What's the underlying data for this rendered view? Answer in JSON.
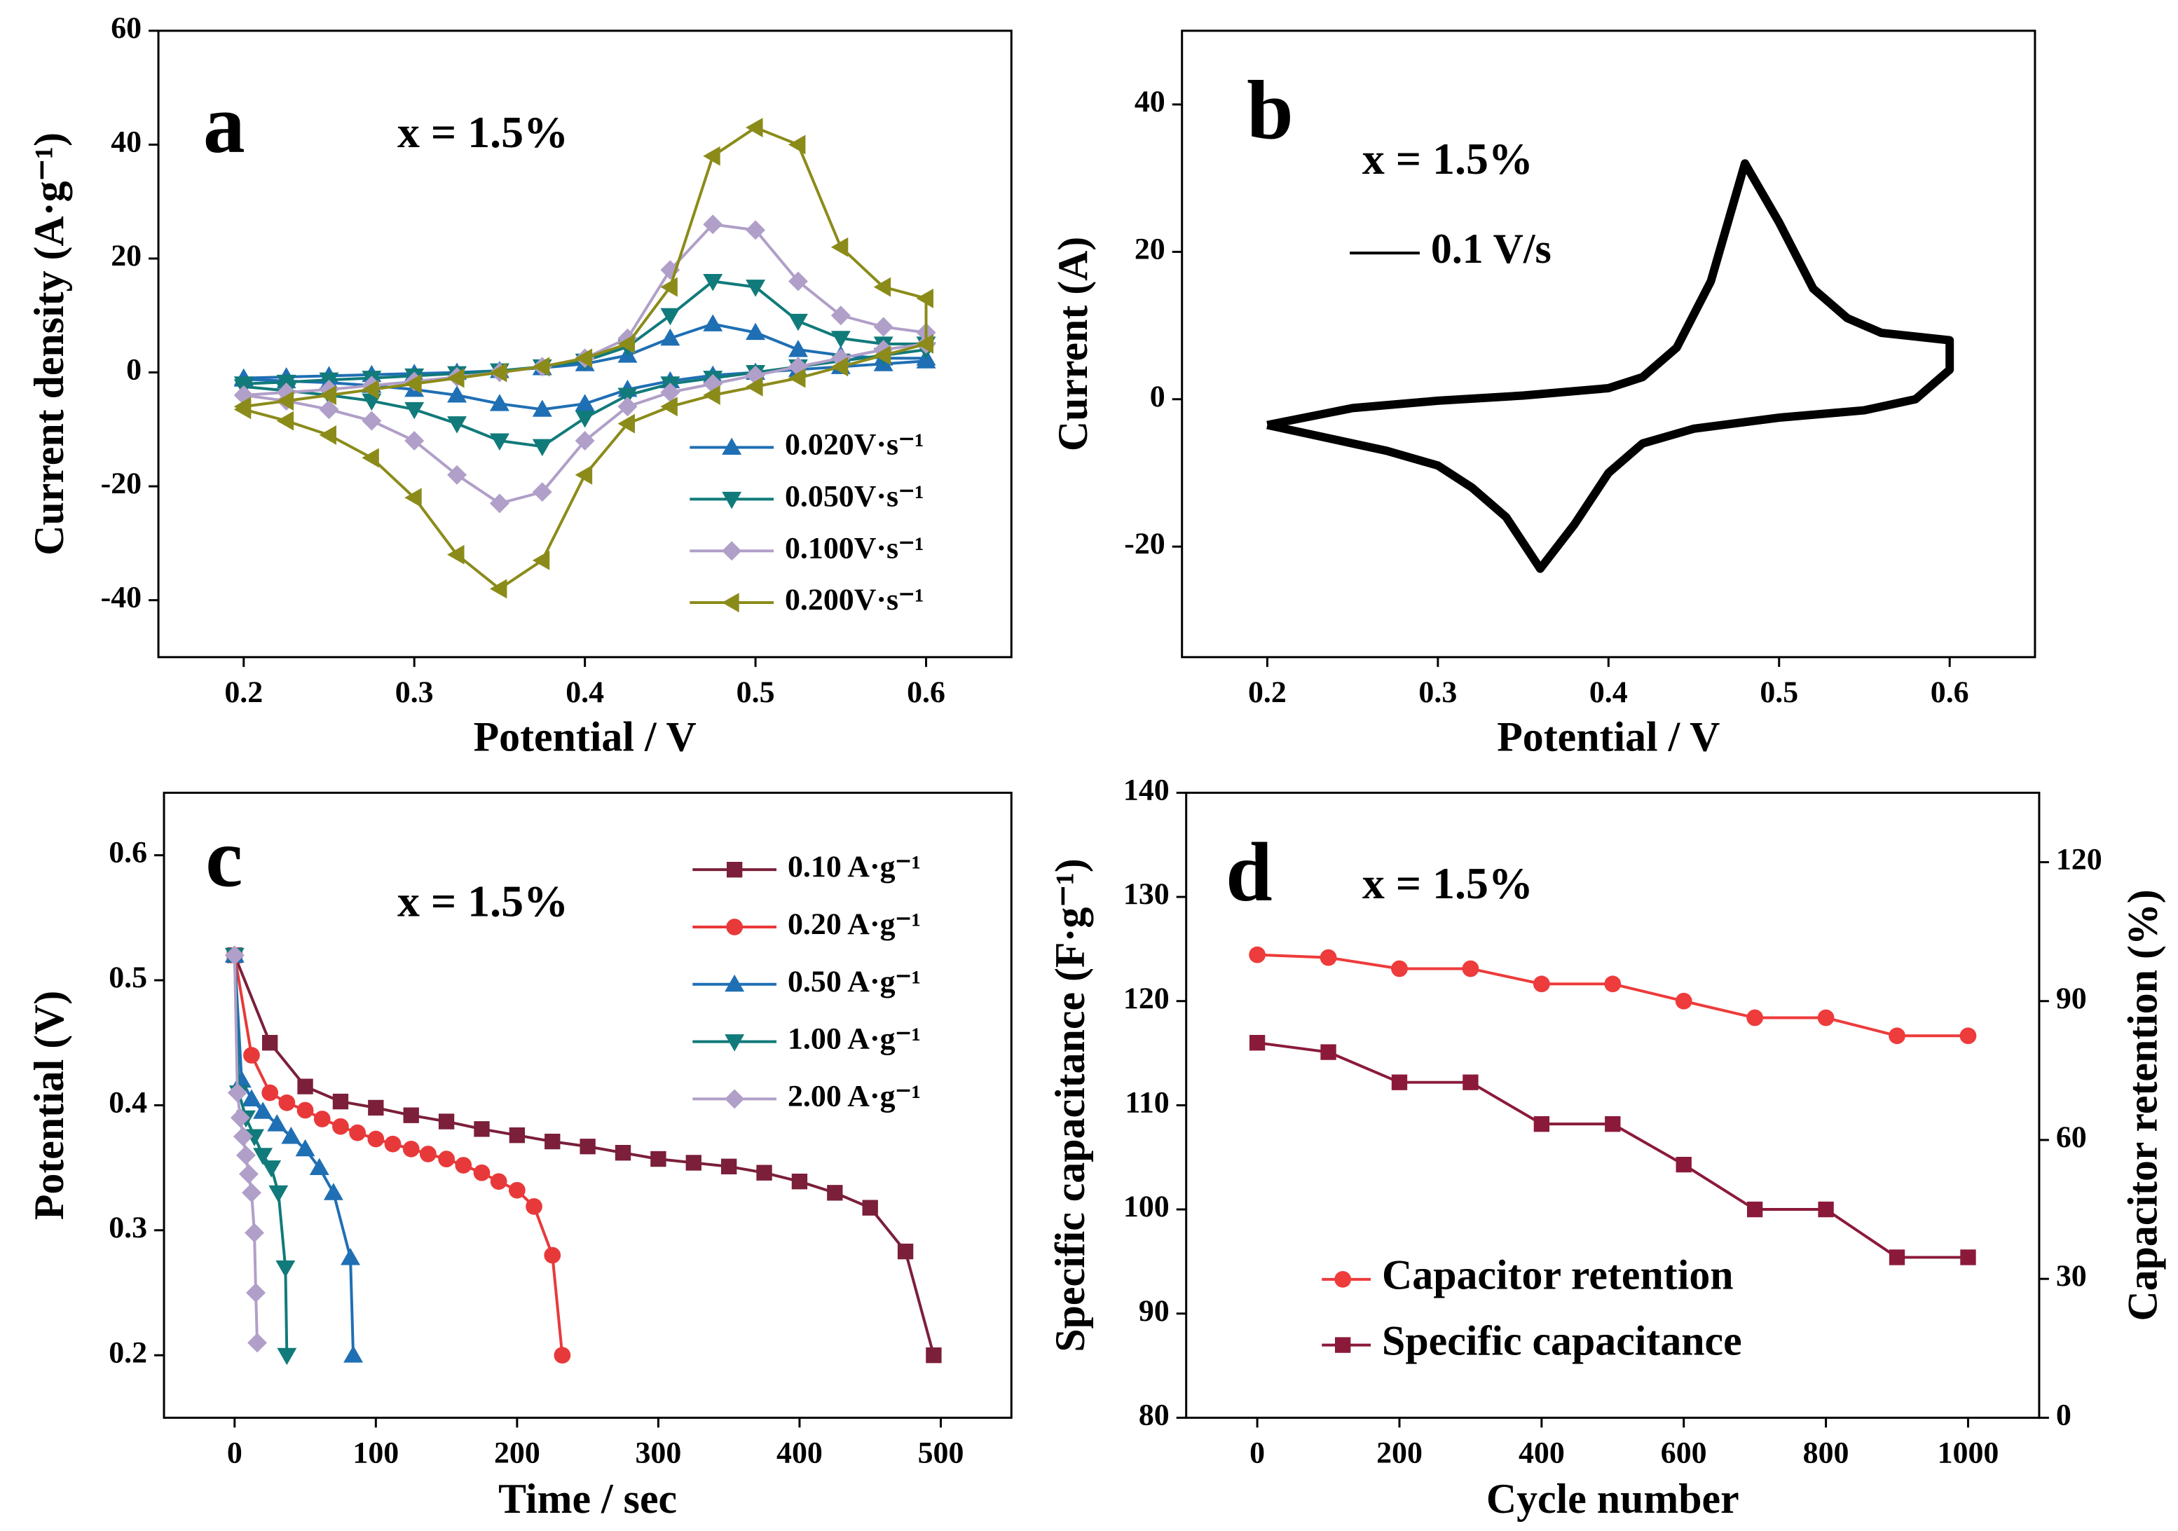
{
  "chart_data": [
    {
      "type": "line",
      "label": "a",
      "annotation": "x = 1.5%",
      "xlabel": "Potential / V",
      "ylabel": "Current density (A·g⁻¹)",
      "xlim": [
        0.15,
        0.65
      ],
      "xticks": [
        0.2,
        0.3,
        0.4,
        0.5,
        0.6
      ],
      "ylim": [
        -50,
        60
      ],
      "yticks": [
        -40,
        -20,
        0,
        20,
        40,
        60
      ],
      "legend": "lower right",
      "x": [
        0.2,
        0.225,
        0.25,
        0.275,
        0.3,
        0.325,
        0.35,
        0.375,
        0.4,
        0.425,
        0.45,
        0.475,
        0.5,
        0.525,
        0.55,
        0.575,
        0.6,
        0.6,
        0.575,
        0.55,
        0.525,
        0.5,
        0.475,
        0.45,
        0.425,
        0.4,
        0.375,
        0.35,
        0.325,
        0.3,
        0.275,
        0.25,
        0.225,
        0.2
      ],
      "series": [
        {
          "name": "0.020V·s⁻¹",
          "color": "#1f6fb4",
          "marker": "triangle-up",
          "values": [
            -1,
            -0.8,
            -0.6,
            -0.4,
            -0.2,
            0,
            0.3,
            0.8,
            1.5,
            3,
            6,
            8.5,
            7,
            4,
            3,
            2.5,
            2.5,
            2,
            1.5,
            1,
            0.5,
            0,
            -0.5,
            -1.5,
            -3,
            -5.5,
            -6.5,
            -5.5,
            -4,
            -3,
            -2.3,
            -1.8,
            -1.5,
            -1.2
          ]
        },
        {
          "name": "0.050V·s⁻¹",
          "color": "#117a7a",
          "marker": "triangle-down",
          "values": [
            -2,
            -1.7,
            -1.3,
            -1,
            -0.6,
            -0.2,
            0.3,
            1,
            2,
            4.5,
            10,
            16,
            15,
            9,
            6,
            5,
            5,
            4,
            3,
            2,
            1,
            0,
            -1,
            -2,
            -4,
            -8,
            -13,
            -12,
            -9,
            -6.5,
            -5,
            -4,
            -3.2,
            -2.5
          ]
        },
        {
          "name": "0.100V·s⁻¹",
          "color": "#b09fc8",
          "marker": "diamond",
          "values": [
            -4,
            -3.5,
            -3,
            -2.3,
            -1.6,
            -0.8,
            0,
            1,
            2.5,
            6,
            18,
            26,
            25,
            16,
            10,
            8,
            7,
            5,
            4,
            2.5,
            1,
            -0.5,
            -2,
            -3.5,
            -6,
            -12,
            -21,
            -23,
            -18,
            -12,
            -8.5,
            -6.5,
            -5,
            -4
          ]
        },
        {
          "name": "0.200V·s⁻¹",
          "color": "#8b8b1a",
          "marker": "triangle-left",
          "values": [
            -6,
            -5,
            -4,
            -3,
            -2,
            -1,
            0,
            1,
            2.5,
            5,
            15,
            38,
            43,
            40,
            22,
            15,
            13,
            5,
            3,
            1,
            -1,
            -2.5,
            -4,
            -6,
            -9,
            -18,
            -33,
            -38,
            -32,
            -22,
            -15,
            -11,
            -8.5,
            -6.5
          ]
        }
      ]
    },
    {
      "type": "line",
      "label": "b",
      "annotation": "x = 1.5%",
      "xlabel": "Potential / V",
      "ylabel": "Current (A)",
      "xlim": [
        0.15,
        0.65
      ],
      "xticks": [
        0.2,
        0.3,
        0.4,
        0.5,
        0.6
      ],
      "ylim": [
        -35,
        50
      ],
      "yticks": [
        -20,
        0,
        20,
        40
      ],
      "legend": "upper left",
      "series": [
        {
          "name": "0.1 V/s",
          "color": "#000000",
          "x": [
            0.2,
            0.25,
            0.3,
            0.35,
            0.4,
            0.42,
            0.44,
            0.46,
            0.48,
            0.5,
            0.52,
            0.54,
            0.56,
            0.58,
            0.6,
            0.6,
            0.58,
            0.55,
            0.5,
            0.45,
            0.42,
            0.4,
            0.38,
            0.36,
            0.34,
            0.32,
            0.3,
            0.27,
            0.25,
            0.22,
            0.2
          ],
          "values": [
            -3.5,
            -1.2,
            -0.2,
            0.5,
            1.5,
            3,
            7,
            16,
            32,
            24,
            15,
            11,
            9,
            8.5,
            8,
            4,
            0,
            -1.5,
            -2.5,
            -4,
            -6,
            -10,
            -17,
            -23,
            -16,
            -12,
            -9,
            -7,
            -6,
            -4.5,
            -3.5
          ]
        }
      ]
    },
    {
      "type": "line",
      "label": "c",
      "annotation": "x = 1.5%",
      "xlabel": "Time / sec",
      "ylabel": "Potential (V)",
      "xlim": [
        -50,
        550
      ],
      "xticks": [
        0,
        100,
        200,
        300,
        400,
        500
      ],
      "ylim": [
        0.15,
        0.65
      ],
      "yticks": [
        0.2,
        0.3,
        0.4,
        0.5,
        0.6
      ],
      "legend": "upper right",
      "series": [
        {
          "name": "0.10 A·g⁻¹",
          "color": "#7b1f3a",
          "marker": "square",
          "x": [
            0,
            25,
            50,
            75,
            100,
            125,
            150,
            175,
            200,
            225,
            250,
            275,
            300,
            325,
            350,
            375,
            400,
            425,
            450,
            475,
            495
          ],
          "values": [
            0.52,
            0.45,
            0.415,
            0.403,
            0.398,
            0.392,
            0.387,
            0.381,
            0.376,
            0.371,
            0.367,
            0.362,
            0.357,
            0.354,
            0.351,
            0.346,
            0.339,
            0.33,
            0.318,
            0.283,
            0.2
          ]
        },
        {
          "name": "0.20 A·g⁻¹",
          "color": "#e8393a",
          "marker": "circle",
          "x": [
            0,
            12,
            25,
            37,
            50,
            62,
            75,
            87,
            100,
            112,
            125,
            137,
            150,
            162,
            175,
            187,
            200,
            212,
            225,
            232
          ],
          "values": [
            0.52,
            0.44,
            0.41,
            0.402,
            0.396,
            0.389,
            0.383,
            0.378,
            0.373,
            0.369,
            0.365,
            0.361,
            0.357,
            0.352,
            0.346,
            0.339,
            0.332,
            0.319,
            0.28,
            0.2
          ]
        },
        {
          "name": "0.50 A·g⁻¹",
          "color": "#1f6fb4",
          "marker": "triangle-up",
          "x": [
            0,
            5,
            12,
            20,
            30,
            40,
            50,
            60,
            70,
            82,
            84
          ],
          "values": [
            0.52,
            0.42,
            0.405,
            0.395,
            0.385,
            0.375,
            0.365,
            0.35,
            0.33,
            0.278,
            0.2
          ]
        },
        {
          "name": "1.00 A·g⁻¹",
          "color": "#117a7a",
          "marker": "triangle-down",
          "x": [
            0,
            3,
            8,
            14,
            20,
            26,
            31,
            36,
            37
          ],
          "values": [
            0.52,
            0.41,
            0.39,
            0.375,
            0.36,
            0.35,
            0.33,
            0.27,
            0.2
          ]
        },
        {
          "name": "2.00 A·g⁻¹",
          "color": "#b09fc8",
          "marker": "diamond",
          "x": [
            0,
            2,
            4,
            6,
            8,
            10,
            12,
            14,
            15,
            16
          ],
          "values": [
            0.52,
            0.41,
            0.39,
            0.375,
            0.36,
            0.345,
            0.33,
            0.298,
            0.25,
            0.21
          ]
        }
      ]
    },
    {
      "type": "line",
      "label": "d",
      "annotation": "x = 1.5%",
      "xlabel": "Cycle number",
      "ylabel": "Specific capacitance (F·g⁻¹)",
      "y2label": "Capacitor retention (%)",
      "xlim": [
        -100,
        1100
      ],
      "xticks": [
        0,
        200,
        400,
        600,
        800,
        1000
      ],
      "ylim": [
        80,
        140
      ],
      "yticks": [
        80,
        90,
        100,
        110,
        120,
        130,
        140
      ],
      "y2lim": [
        0,
        135
      ],
      "y2ticks": [
        0,
        30,
        60,
        90,
        120
      ],
      "legend": "lower left",
      "x": [
        0,
        100,
        200,
        300,
        400,
        500,
        600,
        700,
        800,
        900,
        1000
      ],
      "series": [
        {
          "name": "Capacitor retention",
          "color": "#ee3b3b",
          "marker": "circle",
          "axis": "y2",
          "values": [
            100,
            99.4,
            97,
            97,
            93.7,
            93.7,
            90,
            86.4,
            86.4,
            82.5,
            82.5
          ]
        },
        {
          "name": "Specific capacitance",
          "color": "#8b1a3a",
          "marker": "square",
          "values": [
            116,
            115.1,
            112.2,
            112.2,
            108.2,
            108.2,
            104.3,
            100,
            100,
            95.4,
            95.4
          ]
        }
      ]
    }
  ]
}
